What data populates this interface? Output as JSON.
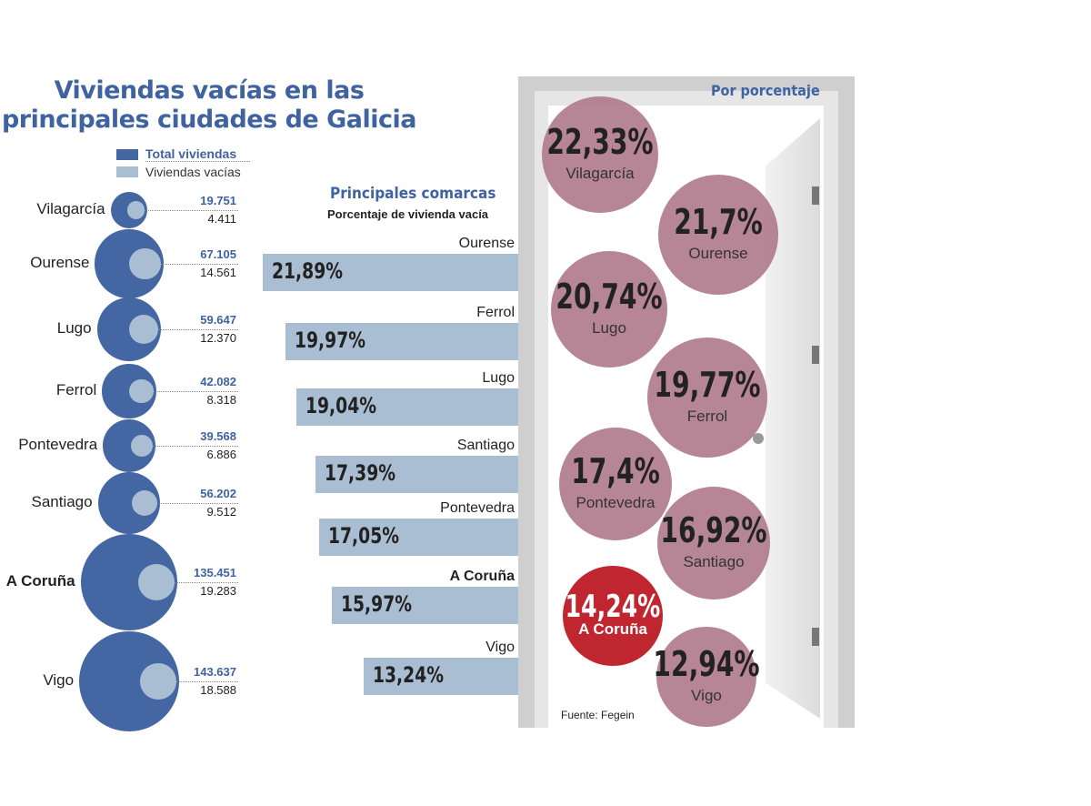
{
  "title_line1": "Viviendas vacías en las",
  "title_line2": "principales ciudades de Galicia",
  "legend": {
    "total": "Total viviendas",
    "vacias": "Viviendas vacías"
  },
  "colors": {
    "total": "#4466a3",
    "vacias": "#a9bed2",
    "circle": "#b07b8d",
    "highlight": "#c0262f",
    "title": "#3f62a0"
  },
  "comarcas_title": "Principales comarcas",
  "comarcas_subtitle": "Porcentaje de vivienda vacía",
  "door_title": "Por porcentaje",
  "source": "Fuente: Fegein",
  "chart_data": [
    {
      "type": "bubble",
      "series": [
        {
          "name": "Total viviendas"
        },
        {
          "name": "Viviendas vacías"
        }
      ],
      "cities": [
        {
          "name": "Vilagarcía",
          "total": "19.751",
          "vacias": "4.411",
          "total_n": 19751,
          "vacias_n": 4411
        },
        {
          "name": "Ourense",
          "total": "67.105",
          "vacias": "14.561",
          "total_n": 67105,
          "vacias_n": 14561
        },
        {
          "name": "Lugo",
          "total": "59.647",
          "vacias": "12.370",
          "total_n": 59647,
          "vacias_n": 12370
        },
        {
          "name": "Ferrol",
          "total": "42.082",
          "vacias": "8.318",
          "total_n": 42082,
          "vacias_n": 8318
        },
        {
          "name": "Pontevedra",
          "total": "39.568",
          "vacias": "6.886",
          "total_n": 39568,
          "vacias_n": 6886
        },
        {
          "name": "Santiago",
          "total": "56.202",
          "vacias": "9.512",
          "total_n": 56202,
          "vacias_n": 9512
        },
        {
          "name": "A Coruña",
          "total": "135.451",
          "vacias": "19.283",
          "total_n": 135451,
          "vacias_n": 19283,
          "bold": true
        },
        {
          "name": "Vigo",
          "total": "143.637",
          "vacias": "18.588",
          "total_n": 143637,
          "vacias_n": 18588
        }
      ]
    },
    {
      "type": "bar",
      "title": "Principales comarcas",
      "subtitle": "Porcentaje de vivienda vacía",
      "categories": [
        "Ourense",
        "Ferrol",
        "Lugo",
        "Santiago",
        "Pontevedra",
        "A Coruña",
        "Vigo"
      ],
      "values": [
        21.89,
        19.97,
        19.04,
        17.39,
        17.05,
        15.97,
        13.24
      ],
      "labels": [
        "21,89%",
        "19,97%",
        "19,04%",
        "17,39%",
        "17,05%",
        "15,97%",
        "13,24%"
      ]
    },
    {
      "type": "bubble",
      "title": "Por porcentaje",
      "categories": [
        "Vilagarcía",
        "Ourense",
        "Lugo",
        "Ferrol",
        "Pontevedra",
        "Santiago",
        "A Coruña",
        "Vigo"
      ],
      "values": [
        22.33,
        21.7,
        20.74,
        19.77,
        17.4,
        16.92,
        14.24,
        12.94
      ],
      "labels": [
        "22,33%",
        "21,7%",
        "20,74%",
        "19,77%",
        "17,4%",
        "16,92%",
        "14,24%",
        "12,94%"
      ],
      "highlight": "A Coruña"
    }
  ]
}
